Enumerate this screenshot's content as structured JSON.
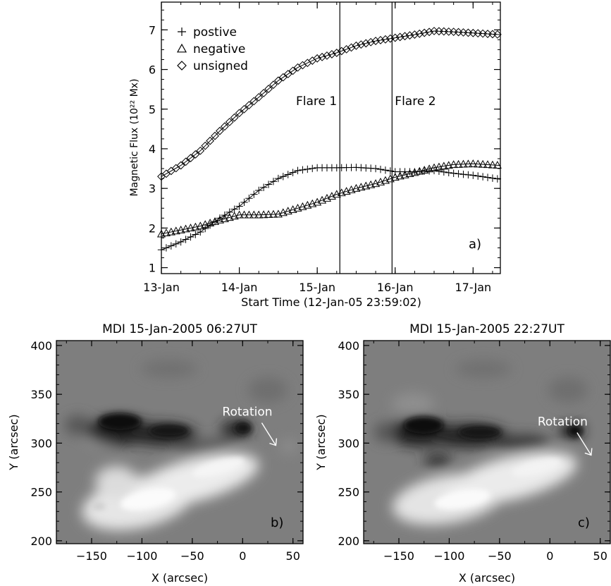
{
  "chart_data": [
    {
      "type": "line",
      "panel_label": "a)",
      "xlabel": "Start Time (12-Jan-05 23:59:02)",
      "ylabel": "Magnetic  Flux  (10²² Mx)",
      "xlim": [
        0,
        4.35
      ],
      "ylim": [
        0.85,
        7.7
      ],
      "x_ticks": [
        {
          "value": 0,
          "label": "13-Jan"
        },
        {
          "value": 1,
          "label": "14-Jan"
        },
        {
          "value": 2,
          "label": "15-Jan"
        },
        {
          "value": 3,
          "label": "16-Jan"
        },
        {
          "value": 4,
          "label": "17-Jan"
        }
      ],
      "y_ticks": [
        1,
        2,
        3,
        4,
        5,
        6,
        7
      ],
      "legend": {
        "placement": "top-left",
        "entries": [
          {
            "symbol": "+",
            "label": "postive"
          },
          {
            "symbol": "triangle",
            "label": "negative"
          },
          {
            "symbol": "diamond",
            "label": "unsigned"
          }
        ]
      },
      "annotations": [
        {
          "label": "Flare 1",
          "x": 2.29
        },
        {
          "label": "Flare 2",
          "x": 2.96
        }
      ],
      "series": [
        {
          "name": "postive",
          "marker": "plus",
          "points": [
            [
              0,
              1.45
            ],
            [
              0.25,
              1.65
            ],
            [
              0.5,
              1.9
            ],
            [
              0.75,
              2.25
            ],
            [
              1.0,
              2.55
            ],
            [
              1.25,
              2.95
            ],
            [
              1.5,
              3.25
            ],
            [
              1.75,
              3.45
            ],
            [
              2.0,
              3.52
            ],
            [
              2.25,
              3.52
            ],
            [
              2.5,
              3.53
            ],
            [
              2.75,
              3.5
            ],
            [
              3.0,
              3.42
            ],
            [
              3.25,
              3.42
            ],
            [
              3.5,
              3.45
            ],
            [
              3.75,
              3.38
            ],
            [
              4.0,
              3.33
            ],
            [
              4.35,
              3.23
            ]
          ]
        },
        {
          "name": "negative",
          "marker": "triangle",
          "points": [
            [
              0,
              1.85
            ],
            [
              0.25,
              1.95
            ],
            [
              0.5,
              2.05
            ],
            [
              0.75,
              2.2
            ],
            [
              1.0,
              2.33
            ],
            [
              1.25,
              2.33
            ],
            [
              1.5,
              2.35
            ],
            [
              1.75,
              2.5
            ],
            [
              2.0,
              2.65
            ],
            [
              2.25,
              2.85
            ],
            [
              2.5,
              3.0
            ],
            [
              2.75,
              3.12
            ],
            [
              3.0,
              3.28
            ],
            [
              3.25,
              3.4
            ],
            [
              3.5,
              3.52
            ],
            [
              3.75,
              3.6
            ],
            [
              4.0,
              3.62
            ],
            [
              4.35,
              3.58
            ]
          ]
        },
        {
          "name": "unsigned",
          "marker": "diamond",
          "points": [
            [
              0,
              3.3
            ],
            [
              0.25,
              3.58
            ],
            [
              0.5,
              3.95
            ],
            [
              0.75,
              4.45
            ],
            [
              1.0,
              4.9
            ],
            [
              1.25,
              5.3
            ],
            [
              1.5,
              5.72
            ],
            [
              1.75,
              6.05
            ],
            [
              2.0,
              6.28
            ],
            [
              2.25,
              6.42
            ],
            [
              2.5,
              6.6
            ],
            [
              2.75,
              6.72
            ],
            [
              3.0,
              6.8
            ],
            [
              3.25,
              6.88
            ],
            [
              3.5,
              6.97
            ],
            [
              3.75,
              6.95
            ],
            [
              4.0,
              6.92
            ],
            [
              4.35,
              6.88
            ]
          ]
        }
      ]
    },
    {
      "type": "heatmap",
      "panel_label": "b)",
      "title": "MDI 15-Jan-2005 06:27UT",
      "xlabel": "X (arcsec)",
      "ylabel": "Y (arcsec)",
      "xlim": [
        -185,
        60
      ],
      "ylim": [
        197,
        405
      ],
      "x_ticks": [
        -150,
        -100,
        -50,
        0,
        50
      ],
      "y_ticks": [
        200,
        250,
        300,
        350,
        400
      ],
      "annotation": {
        "label": "Rotation",
        "x": 12,
        "y": 328
      }
    },
    {
      "type": "heatmap",
      "panel_label": "c)",
      "title": "MDI 15-Jan-2005 22:27UT",
      "xlabel": "X (arcsec)",
      "ylabel": "Y (arcsec)",
      "xlim": [
        -185,
        60
      ],
      "ylim": [
        197,
        405
      ],
      "x_ticks": [
        -150,
        -100,
        -50,
        0,
        50
      ],
      "y_ticks": [
        200,
        250,
        300,
        350,
        400
      ],
      "annotation": {
        "label": "Rotation",
        "x": 20,
        "y": 318
      }
    }
  ]
}
